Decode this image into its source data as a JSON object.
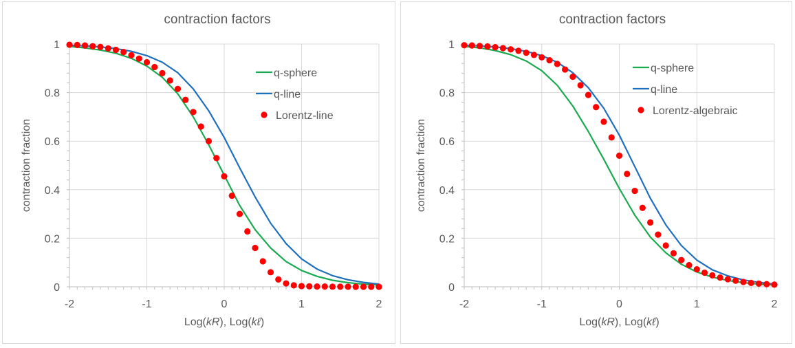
{
  "chart_data": [
    {
      "type": "line",
      "title": "contraction factors",
      "xlabel": "Log(kR), Log(kℓ)",
      "xlabel_parts": [
        "Log(",
        "kR",
        "), Log(",
        "kℓ",
        ")"
      ],
      "ylabel": "contraction fraction",
      "xlim": [
        -2,
        2
      ],
      "ylim": [
        0,
        1
      ],
      "x_ticks": [
        "-2",
        "-1",
        "0",
        "1",
        "2"
      ],
      "y_ticks": [
        "0",
        "0.2",
        "0.4",
        "0.6",
        "0.8",
        "1"
      ],
      "grid": true,
      "legend_position": "top-right",
      "series": [
        {
          "name": "q-sphere",
          "style": "line",
          "color": "#1aaa50",
          "x": [
            -2,
            -1.8,
            -1.6,
            -1.4,
            -1.2,
            -1,
            -0.8,
            -0.6,
            -0.4,
            -0.2,
            0,
            0.2,
            0.4,
            0.6,
            0.8,
            1,
            1.2,
            1.4,
            1.6,
            1.8,
            2
          ],
          "y": [
            0.99,
            0.984,
            0.975,
            0.962,
            0.941,
            0.909,
            0.863,
            0.795,
            0.7,
            0.585,
            0.46,
            0.335,
            0.235,
            0.16,
            0.104,
            0.067,
            0.043,
            0.027,
            0.017,
            0.011,
            0.007
          ]
        },
        {
          "name": "q-line",
          "style": "line",
          "color": "#1f6fbf",
          "x": [
            -2,
            -1.8,
            -1.6,
            -1.4,
            -1.2,
            -1,
            -0.8,
            -0.6,
            -0.4,
            -0.2,
            0,
            0.2,
            0.4,
            0.6,
            0.8,
            1,
            1.2,
            1.4,
            1.6,
            1.8,
            2
          ],
          "y": [
            0.995,
            0.992,
            0.988,
            0.981,
            0.97,
            0.952,
            0.925,
            0.882,
            0.815,
            0.725,
            0.615,
            0.49,
            0.37,
            0.262,
            0.178,
            0.115,
            0.073,
            0.046,
            0.029,
            0.018,
            0.011
          ]
        },
        {
          "name": "Lorentz-line",
          "style": "markers",
          "color": "#ff0000",
          "x": [
            -2,
            -1.9,
            -1.8,
            -1.7,
            -1.6,
            -1.5,
            -1.4,
            -1.3,
            -1.2,
            -1.1,
            -1,
            -0.9,
            -0.8,
            -0.7,
            -0.6,
            -0.5,
            -0.4,
            -0.3,
            -0.2,
            -0.1,
            0,
            0.1,
            0.2,
            0.3,
            0.4,
            0.5,
            0.6,
            0.7,
            0.8,
            0.9,
            1,
            1.1,
            1.2,
            1.3,
            1.4,
            1.5,
            1.6,
            1.7,
            1.8,
            1.9,
            2
          ],
          "y": [
            0.997,
            0.996,
            0.994,
            0.991,
            0.988,
            0.982,
            0.976,
            0.967,
            0.954,
            0.94,
            0.925,
            0.905,
            0.88,
            0.85,
            0.815,
            0.77,
            0.72,
            0.66,
            0.6,
            0.53,
            0.455,
            0.375,
            0.3,
            0.228,
            0.16,
            0.105,
            0.06,
            0.03,
            0.014,
            0.006,
            0.003,
            0.002,
            0.001,
            0.001,
            0.0005,
            0.0003,
            0.0002,
            0.0001,
            0.0001,
            0.0001,
            0.0001
          ]
        }
      ]
    },
    {
      "type": "line",
      "title": "contraction factors",
      "xlabel": "Log(kR), Log(kℓ)",
      "xlabel_parts": [
        "Log(",
        "kR",
        "), Log(",
        "kℓ",
        ")"
      ],
      "ylabel": "contraction fraction",
      "xlim": [
        -2,
        2
      ],
      "ylim": [
        0,
        1
      ],
      "x_ticks": [
        "-2",
        "-1",
        "0",
        "1",
        "2"
      ],
      "y_ticks": [
        "0",
        "0.2",
        "0.4",
        "0.6",
        "0.8",
        "1"
      ],
      "grid": true,
      "legend_position": "top-right",
      "series": [
        {
          "name": "q-sphere",
          "style": "line",
          "color": "#1aaa50",
          "x": [
            -2,
            -1.8,
            -1.6,
            -1.4,
            -1.2,
            -1,
            -0.8,
            -0.6,
            -0.4,
            -0.2,
            0,
            0.2,
            0.4,
            0.6,
            0.8,
            1,
            1.2,
            1.4,
            1.6,
            1.8,
            2
          ],
          "y": [
            0.99,
            0.984,
            0.973,
            0.956,
            0.93,
            0.89,
            0.83,
            0.745,
            0.64,
            0.525,
            0.405,
            0.295,
            0.205,
            0.14,
            0.093,
            0.061,
            0.04,
            0.026,
            0.017,
            0.011,
            0.007
          ]
        },
        {
          "name": "q-line",
          "style": "line",
          "color": "#1f6fbf",
          "x": [
            -2,
            -1.8,
            -1.6,
            -1.4,
            -1.2,
            -1,
            -0.8,
            -0.6,
            -0.4,
            -0.2,
            0,
            0.2,
            0.4,
            0.6,
            0.8,
            1,
            1.2,
            1.4,
            1.6,
            1.8,
            2
          ],
          "y": [
            0.995,
            0.992,
            0.988,
            0.981,
            0.97,
            0.952,
            0.925,
            0.882,
            0.82,
            0.735,
            0.625,
            0.495,
            0.365,
            0.255,
            0.17,
            0.11,
            0.07,
            0.045,
            0.028,
            0.018,
            0.011
          ]
        },
        {
          "name": "Lorentz-algebraic",
          "style": "markers",
          "color": "#ff0000",
          "x": [
            -2,
            -1.9,
            -1.8,
            -1.7,
            -1.6,
            -1.5,
            -1.4,
            -1.3,
            -1.2,
            -1.1,
            -1,
            -0.9,
            -0.8,
            -0.7,
            -0.6,
            -0.5,
            -0.4,
            -0.3,
            -0.2,
            -0.1,
            0,
            0.1,
            0.2,
            0.3,
            0.4,
            0.5,
            0.6,
            0.7,
            0.8,
            0.9,
            1,
            1.1,
            1.2,
            1.3,
            1.4,
            1.5,
            1.6,
            1.7,
            1.8,
            1.9,
            2
          ],
          "y": [
            0.995,
            0.994,
            0.992,
            0.99,
            0.987,
            0.983,
            0.978,
            0.972,
            0.964,
            0.955,
            0.945,
            0.933,
            0.918,
            0.895,
            0.865,
            0.83,
            0.79,
            0.74,
            0.68,
            0.615,
            0.54,
            0.465,
            0.395,
            0.325,
            0.265,
            0.215,
            0.17,
            0.138,
            0.11,
            0.089,
            0.072,
            0.058,
            0.047,
            0.038,
            0.031,
            0.025,
            0.02,
            0.016,
            0.013,
            0.011,
            0.009
          ]
        }
      ]
    }
  ]
}
